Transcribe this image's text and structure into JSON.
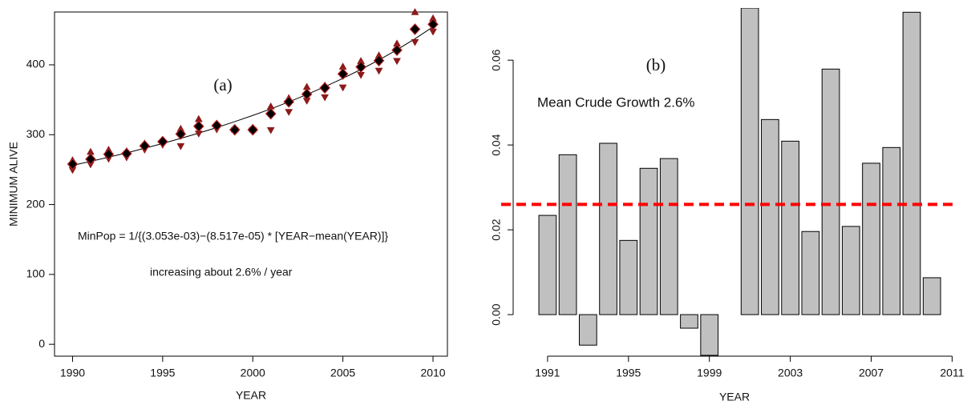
{
  "chart_data": [
    {
      "type": "scatter",
      "xlabel": "YEAR",
      "ylabel": "MINIMUM ALIVE",
      "annotations": [
        "(a)",
        "MinPop = 1/{(3.053e-03)−(8.517e-05) * [YEAR−mean(YEAR)]}",
        "increasing about 2.6% / year"
      ],
      "x": [
        1990,
        1991,
        1992,
        1993,
        1994,
        1995,
        1996,
        1997,
        1998,
        1999,
        2000,
        2001,
        2002,
        2003,
        2004,
        2005,
        2006,
        2007,
        2008,
        2009,
        2010
      ],
      "series": [
        {
          "marker": "line",
          "color": "#000000",
          "values": [
            256.1,
            261.8,
            267.8,
            274.0,
            280.6,
            287.4,
            294.7,
            302.2,
            310.2,
            318.7,
            327.5,
            336.9,
            346.9,
            357.5,
            368.7,
            380.6,
            393.4,
            407.0,
            421.6,
            437.3,
            454.3
          ]
        },
        {
          "marker": "triangle-up",
          "color": "#8b1a1a",
          "values": [
            263,
            275,
            278,
            276,
            287,
            292,
            308,
            322,
            315,
            307,
            307,
            340,
            352,
            368,
            370,
            397,
            405,
            413,
            430,
            475,
            466
          ]
        },
        {
          "marker": "triangle-down",
          "color": "#8b1a1a",
          "values": [
            250,
            258,
            266,
            268,
            279,
            286,
            284,
            302,
            308,
            307,
            307,
            307,
            333,
            349,
            354,
            368,
            386,
            392,
            406,
            433,
            448
          ]
        },
        {
          "marker": "diamond",
          "color": "#000000",
          "values": [
            258,
            265,
            272,
            273,
            284,
            290,
            301,
            312,
            313,
            307,
            307,
            330,
            347,
            358,
            367,
            387,
            397,
            406,
            421,
            451,
            458
          ]
        }
      ],
      "xlim": [
        1989.0,
        2010.8
      ],
      "xticks": [
        1990,
        1995,
        2000,
        2005,
        2010
      ],
      "ylim": [
        -17,
        475.6
      ],
      "yticks": [
        0,
        100,
        200,
        300,
        400
      ]
    },
    {
      "type": "bar",
      "xlabel": "YEAR",
      "annotations": [
        "(b)",
        "Mean Crude Growth 2.6%"
      ],
      "x": [
        1991,
        1992,
        1993,
        1994,
        1995,
        1996,
        1997,
        1998,
        1999,
        2000,
        2001,
        2002,
        2003,
        2004,
        2005,
        2006,
        2007,
        2008,
        2009,
        2010
      ],
      "values": [
        0.0234,
        0.0377,
        -0.0072,
        0.0404,
        0.0175,
        0.0345,
        0.0368,
        -0.0032,
        -0.0096,
        0,
        0.0723,
        0.046,
        0.0409,
        0.0196,
        0.0579,
        0.0208,
        0.0357,
        0.0394,
        0.0713,
        0.0087
      ],
      "color": "#c0c0c0",
      "hline": 0.026,
      "hline_color": "#ff0000",
      "xlim": [
        1989.3,
        2011.3
      ],
      "xticks": [
        1991,
        1995,
        1999,
        2003,
        2007,
        2011
      ],
      "ylim": [
        -0.0098,
        0.0723
      ],
      "yticks": [
        {
          "value": 0,
          "label": "0.00"
        },
        0.02,
        0.04,
        0.06
      ]
    }
  ]
}
